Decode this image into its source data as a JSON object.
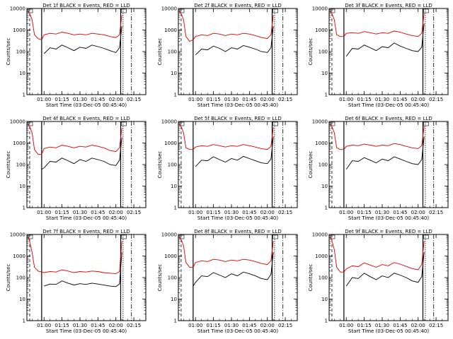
{
  "figure": {
    "ylabel": "Counts/sec",
    "xlabel": "Start Time (03-Dec-05 00:45:40)",
    "series_colors": {
      "Events": "#000000",
      "LLD": "#dd0000"
    }
  },
  "chart_data": [
    {
      "type": "line",
      "title": "Det 1f BLACK = Events, RED = LLD",
      "xlabel": "Start Time (03-Dec-05 00:45:40)",
      "ylabel": "Counts/sec",
      "x_ticks": [
        "01:00",
        "01:15",
        "01:30",
        "01:45",
        "02:00",
        "02:15"
      ],
      "y_ticks": [
        "1",
        "10",
        "100",
        "1000",
        "10000"
      ],
      "y_scale": "log",
      "ylim": [
        1,
        10000
      ],
      "xlim": [
        "00:45:40",
        "02:25"
      ],
      "x": [
        "00:47",
        "00:50",
        "00:52",
        "00:55",
        "00:58",
        "01:00",
        "01:05",
        "01:10",
        "01:15",
        "01:20",
        "01:25",
        "01:30",
        "01:35",
        "01:40",
        "01:45",
        "01:50",
        "01:55",
        "02:00",
        "02:03",
        "02:05"
      ],
      "series": [
        {
          "name": "LLD",
          "values": [
            8000,
            3000,
            600,
            400,
            350,
            600,
            700,
            650,
            800,
            700,
            600,
            650,
            600,
            700,
            650,
            600,
            500,
            450,
            600,
            5000
          ]
        },
        {
          "name": "Events",
          "values": [
            null,
            null,
            null,
            null,
            null,
            80,
            150,
            130,
            200,
            150,
            110,
            160,
            140,
            200,
            170,
            140,
            110,
            90,
            150,
            1500
          ]
        }
      ]
    },
    {
      "type": "line",
      "title": "Det 2f BLACK = Events, RED = LLD",
      "xlabel": "Start Time (03-Dec-05 00:45:40)",
      "ylabel": "Counts/sec",
      "x_ticks": [
        "01:00",
        "01:15",
        "01:30",
        "01:45",
        "02:00",
        "02:15"
      ],
      "y_ticks": [
        "1",
        "10",
        "100",
        "1000",
        "10000"
      ],
      "y_scale": "log",
      "ylim": [
        1,
        10000
      ],
      "xlim": [
        "00:45:40",
        "02:25"
      ],
      "x": [
        "00:47",
        "00:50",
        "00:52",
        "00:55",
        "00:58",
        "01:00",
        "01:05",
        "01:10",
        "01:15",
        "01:20",
        "01:25",
        "01:30",
        "01:35",
        "01:40",
        "01:45",
        "01:50",
        "01:55",
        "02:00",
        "02:03",
        "02:05"
      ],
      "series": [
        {
          "name": "LLD",
          "values": [
            8000,
            3000,
            500,
            300,
            350,
            500,
            600,
            550,
            700,
            650,
            550,
            650,
            600,
            700,
            650,
            550,
            450,
            400,
            600,
            5000
          ]
        },
        {
          "name": "Events",
          "values": [
            null,
            null,
            null,
            null,
            null,
            70,
            130,
            120,
            180,
            140,
            100,
            150,
            130,
            190,
            160,
            130,
            100,
            90,
            150,
            1500
          ]
        }
      ]
    },
    {
      "type": "line",
      "title": "Det 3f BLACK = Events, RED = LLD",
      "xlabel": "Start Time (03-Dec-05 00:45:40)",
      "ylabel": "Counts/sec",
      "x_ticks": [
        "01:00",
        "01:15",
        "01:30",
        "01:45",
        "02:00",
        "02:15"
      ],
      "y_ticks": [
        "1",
        "10",
        "100",
        "1000",
        "10000"
      ],
      "y_scale": "log",
      "ylim": [
        1,
        10000
      ],
      "xlim": [
        "00:45:40",
        "02:25"
      ],
      "x": [
        "00:47",
        "00:50",
        "00:52",
        "00:55",
        "00:58",
        "01:00",
        "01:05",
        "01:10",
        "01:15",
        "01:20",
        "01:25",
        "01:30",
        "01:35",
        "01:40",
        "01:45",
        "01:50",
        "01:55",
        "02:00",
        "02:03",
        "02:05"
      ],
      "series": [
        {
          "name": "LLD",
          "values": [
            8000,
            3000,
            600,
            500,
            500,
            700,
            750,
            700,
            850,
            750,
            650,
            750,
            700,
            900,
            800,
            650,
            550,
            500,
            700,
            6000
          ]
        },
        {
          "name": "Events",
          "values": [
            null,
            null,
            null,
            null,
            null,
            60,
            140,
            130,
            200,
            150,
            110,
            170,
            150,
            250,
            180,
            140,
            110,
            100,
            160,
            2000
          ]
        }
      ]
    },
    {
      "type": "line",
      "title": "Det 4f BLACK = Events, RED = LLD",
      "xlabel": "Start Time (03-Dec-05 00:45:40)",
      "ylabel": "Counts/sec",
      "x_ticks": [
        "01:00",
        "01:15",
        "01:30",
        "01:45",
        "02:00",
        "02:15"
      ],
      "y_ticks": [
        "1",
        "10",
        "100",
        "1000",
        "10000"
      ],
      "y_scale": "log",
      "ylim": [
        1,
        10000
      ],
      "xlim": [
        "00:45:40",
        "02:25"
      ],
      "x": [
        "00:47",
        "00:50",
        "00:52",
        "00:55",
        "00:58",
        "01:00",
        "01:05",
        "01:10",
        "01:15",
        "01:20",
        "01:25",
        "01:30",
        "01:35",
        "01:40",
        "01:45",
        "01:50",
        "01:55",
        "02:00",
        "02:03",
        "02:05"
      ],
      "series": [
        {
          "name": "LLD",
          "values": [
            8000,
            3000,
            500,
            300,
            300,
            550,
            650,
            600,
            800,
            700,
            600,
            700,
            650,
            800,
            700,
            600,
            450,
            400,
            600,
            5000
          ]
        },
        {
          "name": "Events",
          "values": [
            null,
            null,
            null,
            null,
            60,
            70,
            140,
            130,
            200,
            150,
            110,
            170,
            140,
            200,
            170,
            140,
            100,
            90,
            160,
            1800
          ]
        }
      ]
    },
    {
      "type": "line",
      "title": "Det 5f BLACK = Events, RED = LLD",
      "xlabel": "Start Time (03-Dec-05 00:45:40)",
      "ylabel": "Counts/sec",
      "x_ticks": [
        "01:00",
        "01:15",
        "01:30",
        "01:45",
        "02:00",
        "02:15"
      ],
      "y_ticks": [
        "1",
        "10",
        "100",
        "1000",
        "10000"
      ],
      "y_scale": "log",
      "ylim": [
        1,
        10000
      ],
      "xlim": [
        "00:45:40",
        "02:25"
      ],
      "x": [
        "00:47",
        "00:50",
        "00:52",
        "00:55",
        "00:58",
        "01:00",
        "01:05",
        "01:10",
        "01:15",
        "01:20",
        "01:25",
        "01:30",
        "01:35",
        "01:40",
        "01:45",
        "01:50",
        "01:55",
        "02:00",
        "02:03",
        "02:05"
      ],
      "series": [
        {
          "name": "LLD",
          "values": [
            8000,
            3000,
            600,
            500,
            500,
            650,
            750,
            700,
            850,
            750,
            650,
            750,
            700,
            850,
            750,
            650,
            550,
            500,
            700,
            5500
          ]
        },
        {
          "name": "Events",
          "values": [
            null,
            null,
            null,
            null,
            null,
            80,
            160,
            150,
            230,
            170,
            130,
            190,
            160,
            240,
            190,
            150,
            120,
            110,
            180,
            2000
          ]
        }
      ]
    },
    {
      "type": "line",
      "title": "Det 6f BLACK = Events, RED = LLD",
      "xlabel": "Start Time (03-Dec-05 00:45:40)",
      "ylabel": "Counts/sec",
      "x_ticks": [
        "01:00",
        "01:15",
        "01:30",
        "01:45",
        "02:00",
        "02:15"
      ],
      "y_ticks": [
        "1",
        "10",
        "100",
        "1000",
        "10000"
      ],
      "y_scale": "log",
      "ylim": [
        1,
        10000
      ],
      "xlim": [
        "00:45:40",
        "02:25"
      ],
      "x": [
        "00:47",
        "00:50",
        "00:52",
        "00:55",
        "00:58",
        "01:00",
        "01:05",
        "01:10",
        "01:15",
        "01:20",
        "01:25",
        "01:30",
        "01:35",
        "01:40",
        "01:45",
        "01:50",
        "01:55",
        "02:00",
        "02:03",
        "02:05"
      ],
      "series": [
        {
          "name": "LLD",
          "values": [
            8000,
            3000,
            600,
            500,
            500,
            700,
            800,
            750,
            900,
            800,
            700,
            800,
            750,
            950,
            850,
            700,
            600,
            550,
            750,
            6000
          ]
        },
        {
          "name": "Events",
          "values": [
            null,
            null,
            null,
            null,
            null,
            60,
            150,
            140,
            210,
            160,
            120,
            180,
            150,
            230,
            180,
            140,
            110,
            100,
            170,
            2000
          ]
        }
      ]
    },
    {
      "type": "line",
      "title": "Det 7f BLACK = Events, RED = LLD",
      "xlabel": "Start Time (03-Dec-05 00:45:40)",
      "ylabel": "Counts/sec",
      "x_ticks": [
        "01:00",
        "01:15",
        "01:30",
        "01:45",
        "02:00",
        "02:15"
      ],
      "y_ticks": [
        "1",
        "10",
        "100",
        "1000",
        "10000"
      ],
      "y_scale": "log",
      "ylim": [
        1,
        10000
      ],
      "xlim": [
        "00:45:40",
        "02:25"
      ],
      "x": [
        "00:47",
        "00:50",
        "00:52",
        "00:55",
        "00:58",
        "01:00",
        "01:05",
        "01:10",
        "01:15",
        "01:20",
        "01:25",
        "01:30",
        "01:35",
        "01:40",
        "01:45",
        "01:50",
        "01:55",
        "02:00",
        "02:03",
        "02:05"
      ],
      "series": [
        {
          "name": "LLD",
          "values": [
            8000,
            1500,
            300,
            200,
            180,
            170,
            190,
            180,
            230,
            200,
            170,
            190,
            180,
            200,
            190,
            170,
            160,
            150,
            190,
            5000
          ]
        },
        {
          "name": "Events",
          "values": [
            null,
            null,
            null,
            null,
            null,
            40,
            50,
            48,
            70,
            55,
            45,
            52,
            48,
            55,
            50,
            45,
            40,
            38,
            50,
            1500
          ]
        }
      ]
    },
    {
      "type": "line",
      "title": "Det 8f BLACK = Events, RED = LLD",
      "xlabel": "Start Time (03-Dec-05 00:45:40)",
      "ylabel": "Counts/sec",
      "x_ticks": [
        "01:00",
        "01:15",
        "01:30",
        "01:45",
        "02:00",
        "02:15"
      ],
      "y_ticks": [
        "1",
        "10",
        "100",
        "1000",
        "10000"
      ],
      "y_scale": "log",
      "ylim": [
        1,
        10000
      ],
      "xlim": [
        "00:45:40",
        "02:25"
      ],
      "x": [
        "00:47",
        "00:50",
        "00:52",
        "00:55",
        "00:58",
        "01:00",
        "01:05",
        "01:10",
        "01:15",
        "01:20",
        "01:25",
        "01:30",
        "01:35",
        "01:40",
        "01:45",
        "01:50",
        "01:55",
        "02:00",
        "02:03",
        "02:05"
      ],
      "series": [
        {
          "name": "LLD",
          "values": [
            8000,
            3000,
            500,
            300,
            300,
            500,
            600,
            550,
            700,
            650,
            550,
            650,
            600,
            700,
            650,
            550,
            450,
            400,
            600,
            5000
          ]
        },
        {
          "name": "Events",
          "values": [
            null,
            null,
            null,
            null,
            40,
            60,
            120,
            110,
            170,
            130,
            100,
            150,
            120,
            180,
            150,
            120,
            90,
            80,
            140,
            1500
          ]
        }
      ]
    },
    {
      "type": "line",
      "title": "Det 9f BLACK = Events, RED = LLD",
      "xlabel": "Start Time (03-Dec-05 00:45:40)",
      "ylabel": "Counts/sec",
      "x_ticks": [
        "01:00",
        "01:15",
        "01:30",
        "01:45",
        "02:00",
        "02:15"
      ],
      "y_ticks": [
        "1",
        "10",
        "100",
        "1000",
        "10000"
      ],
      "y_scale": "log",
      "ylim": [
        1,
        10000
      ],
      "xlim": [
        "00:45:40",
        "02:25"
      ],
      "x": [
        "00:47",
        "00:50",
        "00:52",
        "00:55",
        "00:58",
        "01:00",
        "01:05",
        "01:10",
        "01:15",
        "01:20",
        "01:25",
        "01:30",
        "01:35",
        "01:40",
        "01:45",
        "01:50",
        "01:55",
        "02:00",
        "02:03",
        "02:05"
      ],
      "series": [
        {
          "name": "LLD",
          "values": [
            8000,
            2000,
            300,
            180,
            180,
            250,
            350,
            320,
            480,
            380,
            300,
            400,
            350,
            500,
            420,
            330,
            260,
            230,
            400,
            5000
          ]
        },
        {
          "name": "Events",
          "values": [
            null,
            null,
            null,
            null,
            null,
            40,
            100,
            90,
            160,
            110,
            80,
            120,
            100,
            160,
            130,
            100,
            70,
            60,
            110,
            1500
          ]
        }
      ]
    }
  ]
}
